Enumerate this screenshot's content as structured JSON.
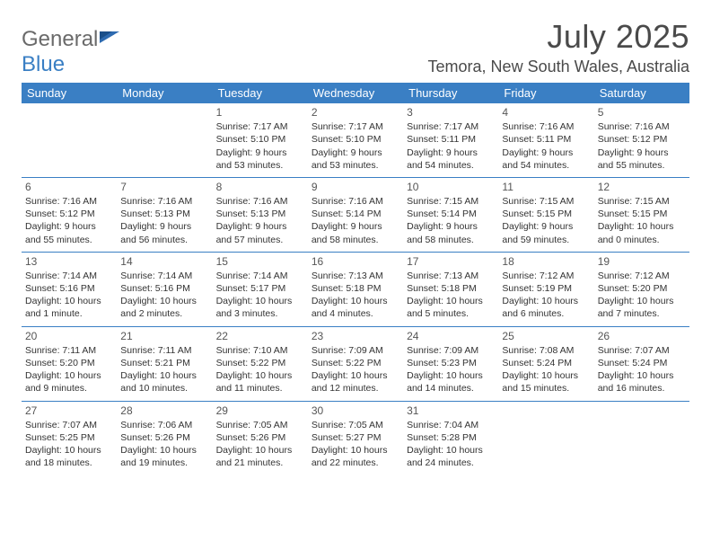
{
  "logo": {
    "word1": "General",
    "word2": "Blue"
  },
  "header": {
    "title": "July 2025",
    "location": "Temora, New South Wales, Australia"
  },
  "calendar": {
    "header_bg": "#3a7fc4",
    "header_fg": "#ffffff",
    "columns": [
      "Sunday",
      "Monday",
      "Tuesday",
      "Wednesday",
      "Thursday",
      "Friday",
      "Saturday"
    ],
    "weeks": [
      [
        null,
        null,
        {
          "day": "1",
          "sunrise": "Sunrise: 7:17 AM",
          "sunset": "Sunset: 5:10 PM",
          "daylight1": "Daylight: 9 hours",
          "daylight2": "and 53 minutes."
        },
        {
          "day": "2",
          "sunrise": "Sunrise: 7:17 AM",
          "sunset": "Sunset: 5:10 PM",
          "daylight1": "Daylight: 9 hours",
          "daylight2": "and 53 minutes."
        },
        {
          "day": "3",
          "sunrise": "Sunrise: 7:17 AM",
          "sunset": "Sunset: 5:11 PM",
          "daylight1": "Daylight: 9 hours",
          "daylight2": "and 54 minutes."
        },
        {
          "day": "4",
          "sunrise": "Sunrise: 7:16 AM",
          "sunset": "Sunset: 5:11 PM",
          "daylight1": "Daylight: 9 hours",
          "daylight2": "and 54 minutes."
        },
        {
          "day": "5",
          "sunrise": "Sunrise: 7:16 AM",
          "sunset": "Sunset: 5:12 PM",
          "daylight1": "Daylight: 9 hours",
          "daylight2": "and 55 minutes."
        }
      ],
      [
        {
          "day": "6",
          "sunrise": "Sunrise: 7:16 AM",
          "sunset": "Sunset: 5:12 PM",
          "daylight1": "Daylight: 9 hours",
          "daylight2": "and 55 minutes."
        },
        {
          "day": "7",
          "sunrise": "Sunrise: 7:16 AM",
          "sunset": "Sunset: 5:13 PM",
          "daylight1": "Daylight: 9 hours",
          "daylight2": "and 56 minutes."
        },
        {
          "day": "8",
          "sunrise": "Sunrise: 7:16 AM",
          "sunset": "Sunset: 5:13 PM",
          "daylight1": "Daylight: 9 hours",
          "daylight2": "and 57 minutes."
        },
        {
          "day": "9",
          "sunrise": "Sunrise: 7:16 AM",
          "sunset": "Sunset: 5:14 PM",
          "daylight1": "Daylight: 9 hours",
          "daylight2": "and 58 minutes."
        },
        {
          "day": "10",
          "sunrise": "Sunrise: 7:15 AM",
          "sunset": "Sunset: 5:14 PM",
          "daylight1": "Daylight: 9 hours",
          "daylight2": "and 58 minutes."
        },
        {
          "day": "11",
          "sunrise": "Sunrise: 7:15 AM",
          "sunset": "Sunset: 5:15 PM",
          "daylight1": "Daylight: 9 hours",
          "daylight2": "and 59 minutes."
        },
        {
          "day": "12",
          "sunrise": "Sunrise: 7:15 AM",
          "sunset": "Sunset: 5:15 PM",
          "daylight1": "Daylight: 10 hours",
          "daylight2": "and 0 minutes."
        }
      ],
      [
        {
          "day": "13",
          "sunrise": "Sunrise: 7:14 AM",
          "sunset": "Sunset: 5:16 PM",
          "daylight1": "Daylight: 10 hours",
          "daylight2": "and 1 minute."
        },
        {
          "day": "14",
          "sunrise": "Sunrise: 7:14 AM",
          "sunset": "Sunset: 5:16 PM",
          "daylight1": "Daylight: 10 hours",
          "daylight2": "and 2 minutes."
        },
        {
          "day": "15",
          "sunrise": "Sunrise: 7:14 AM",
          "sunset": "Sunset: 5:17 PM",
          "daylight1": "Daylight: 10 hours",
          "daylight2": "and 3 minutes."
        },
        {
          "day": "16",
          "sunrise": "Sunrise: 7:13 AM",
          "sunset": "Sunset: 5:18 PM",
          "daylight1": "Daylight: 10 hours",
          "daylight2": "and 4 minutes."
        },
        {
          "day": "17",
          "sunrise": "Sunrise: 7:13 AM",
          "sunset": "Sunset: 5:18 PM",
          "daylight1": "Daylight: 10 hours",
          "daylight2": "and 5 minutes."
        },
        {
          "day": "18",
          "sunrise": "Sunrise: 7:12 AM",
          "sunset": "Sunset: 5:19 PM",
          "daylight1": "Daylight: 10 hours",
          "daylight2": "and 6 minutes."
        },
        {
          "day": "19",
          "sunrise": "Sunrise: 7:12 AM",
          "sunset": "Sunset: 5:20 PM",
          "daylight1": "Daylight: 10 hours",
          "daylight2": "and 7 minutes."
        }
      ],
      [
        {
          "day": "20",
          "sunrise": "Sunrise: 7:11 AM",
          "sunset": "Sunset: 5:20 PM",
          "daylight1": "Daylight: 10 hours",
          "daylight2": "and 9 minutes."
        },
        {
          "day": "21",
          "sunrise": "Sunrise: 7:11 AM",
          "sunset": "Sunset: 5:21 PM",
          "daylight1": "Daylight: 10 hours",
          "daylight2": "and 10 minutes."
        },
        {
          "day": "22",
          "sunrise": "Sunrise: 7:10 AM",
          "sunset": "Sunset: 5:22 PM",
          "daylight1": "Daylight: 10 hours",
          "daylight2": "and 11 minutes."
        },
        {
          "day": "23",
          "sunrise": "Sunrise: 7:09 AM",
          "sunset": "Sunset: 5:22 PM",
          "daylight1": "Daylight: 10 hours",
          "daylight2": "and 12 minutes."
        },
        {
          "day": "24",
          "sunrise": "Sunrise: 7:09 AM",
          "sunset": "Sunset: 5:23 PM",
          "daylight1": "Daylight: 10 hours",
          "daylight2": "and 14 minutes."
        },
        {
          "day": "25",
          "sunrise": "Sunrise: 7:08 AM",
          "sunset": "Sunset: 5:24 PM",
          "daylight1": "Daylight: 10 hours",
          "daylight2": "and 15 minutes."
        },
        {
          "day": "26",
          "sunrise": "Sunrise: 7:07 AM",
          "sunset": "Sunset: 5:24 PM",
          "daylight1": "Daylight: 10 hours",
          "daylight2": "and 16 minutes."
        }
      ],
      [
        {
          "day": "27",
          "sunrise": "Sunrise: 7:07 AM",
          "sunset": "Sunset: 5:25 PM",
          "daylight1": "Daylight: 10 hours",
          "daylight2": "and 18 minutes."
        },
        {
          "day": "28",
          "sunrise": "Sunrise: 7:06 AM",
          "sunset": "Sunset: 5:26 PM",
          "daylight1": "Daylight: 10 hours",
          "daylight2": "and 19 minutes."
        },
        {
          "day": "29",
          "sunrise": "Sunrise: 7:05 AM",
          "sunset": "Sunset: 5:26 PM",
          "daylight1": "Daylight: 10 hours",
          "daylight2": "and 21 minutes."
        },
        {
          "day": "30",
          "sunrise": "Sunrise: 7:05 AM",
          "sunset": "Sunset: 5:27 PM",
          "daylight1": "Daylight: 10 hours",
          "daylight2": "and 22 minutes."
        },
        {
          "day": "31",
          "sunrise": "Sunrise: 7:04 AM",
          "sunset": "Sunset: 5:28 PM",
          "daylight1": "Daylight: 10 hours",
          "daylight2": "and 24 minutes."
        },
        null,
        null
      ]
    ]
  }
}
